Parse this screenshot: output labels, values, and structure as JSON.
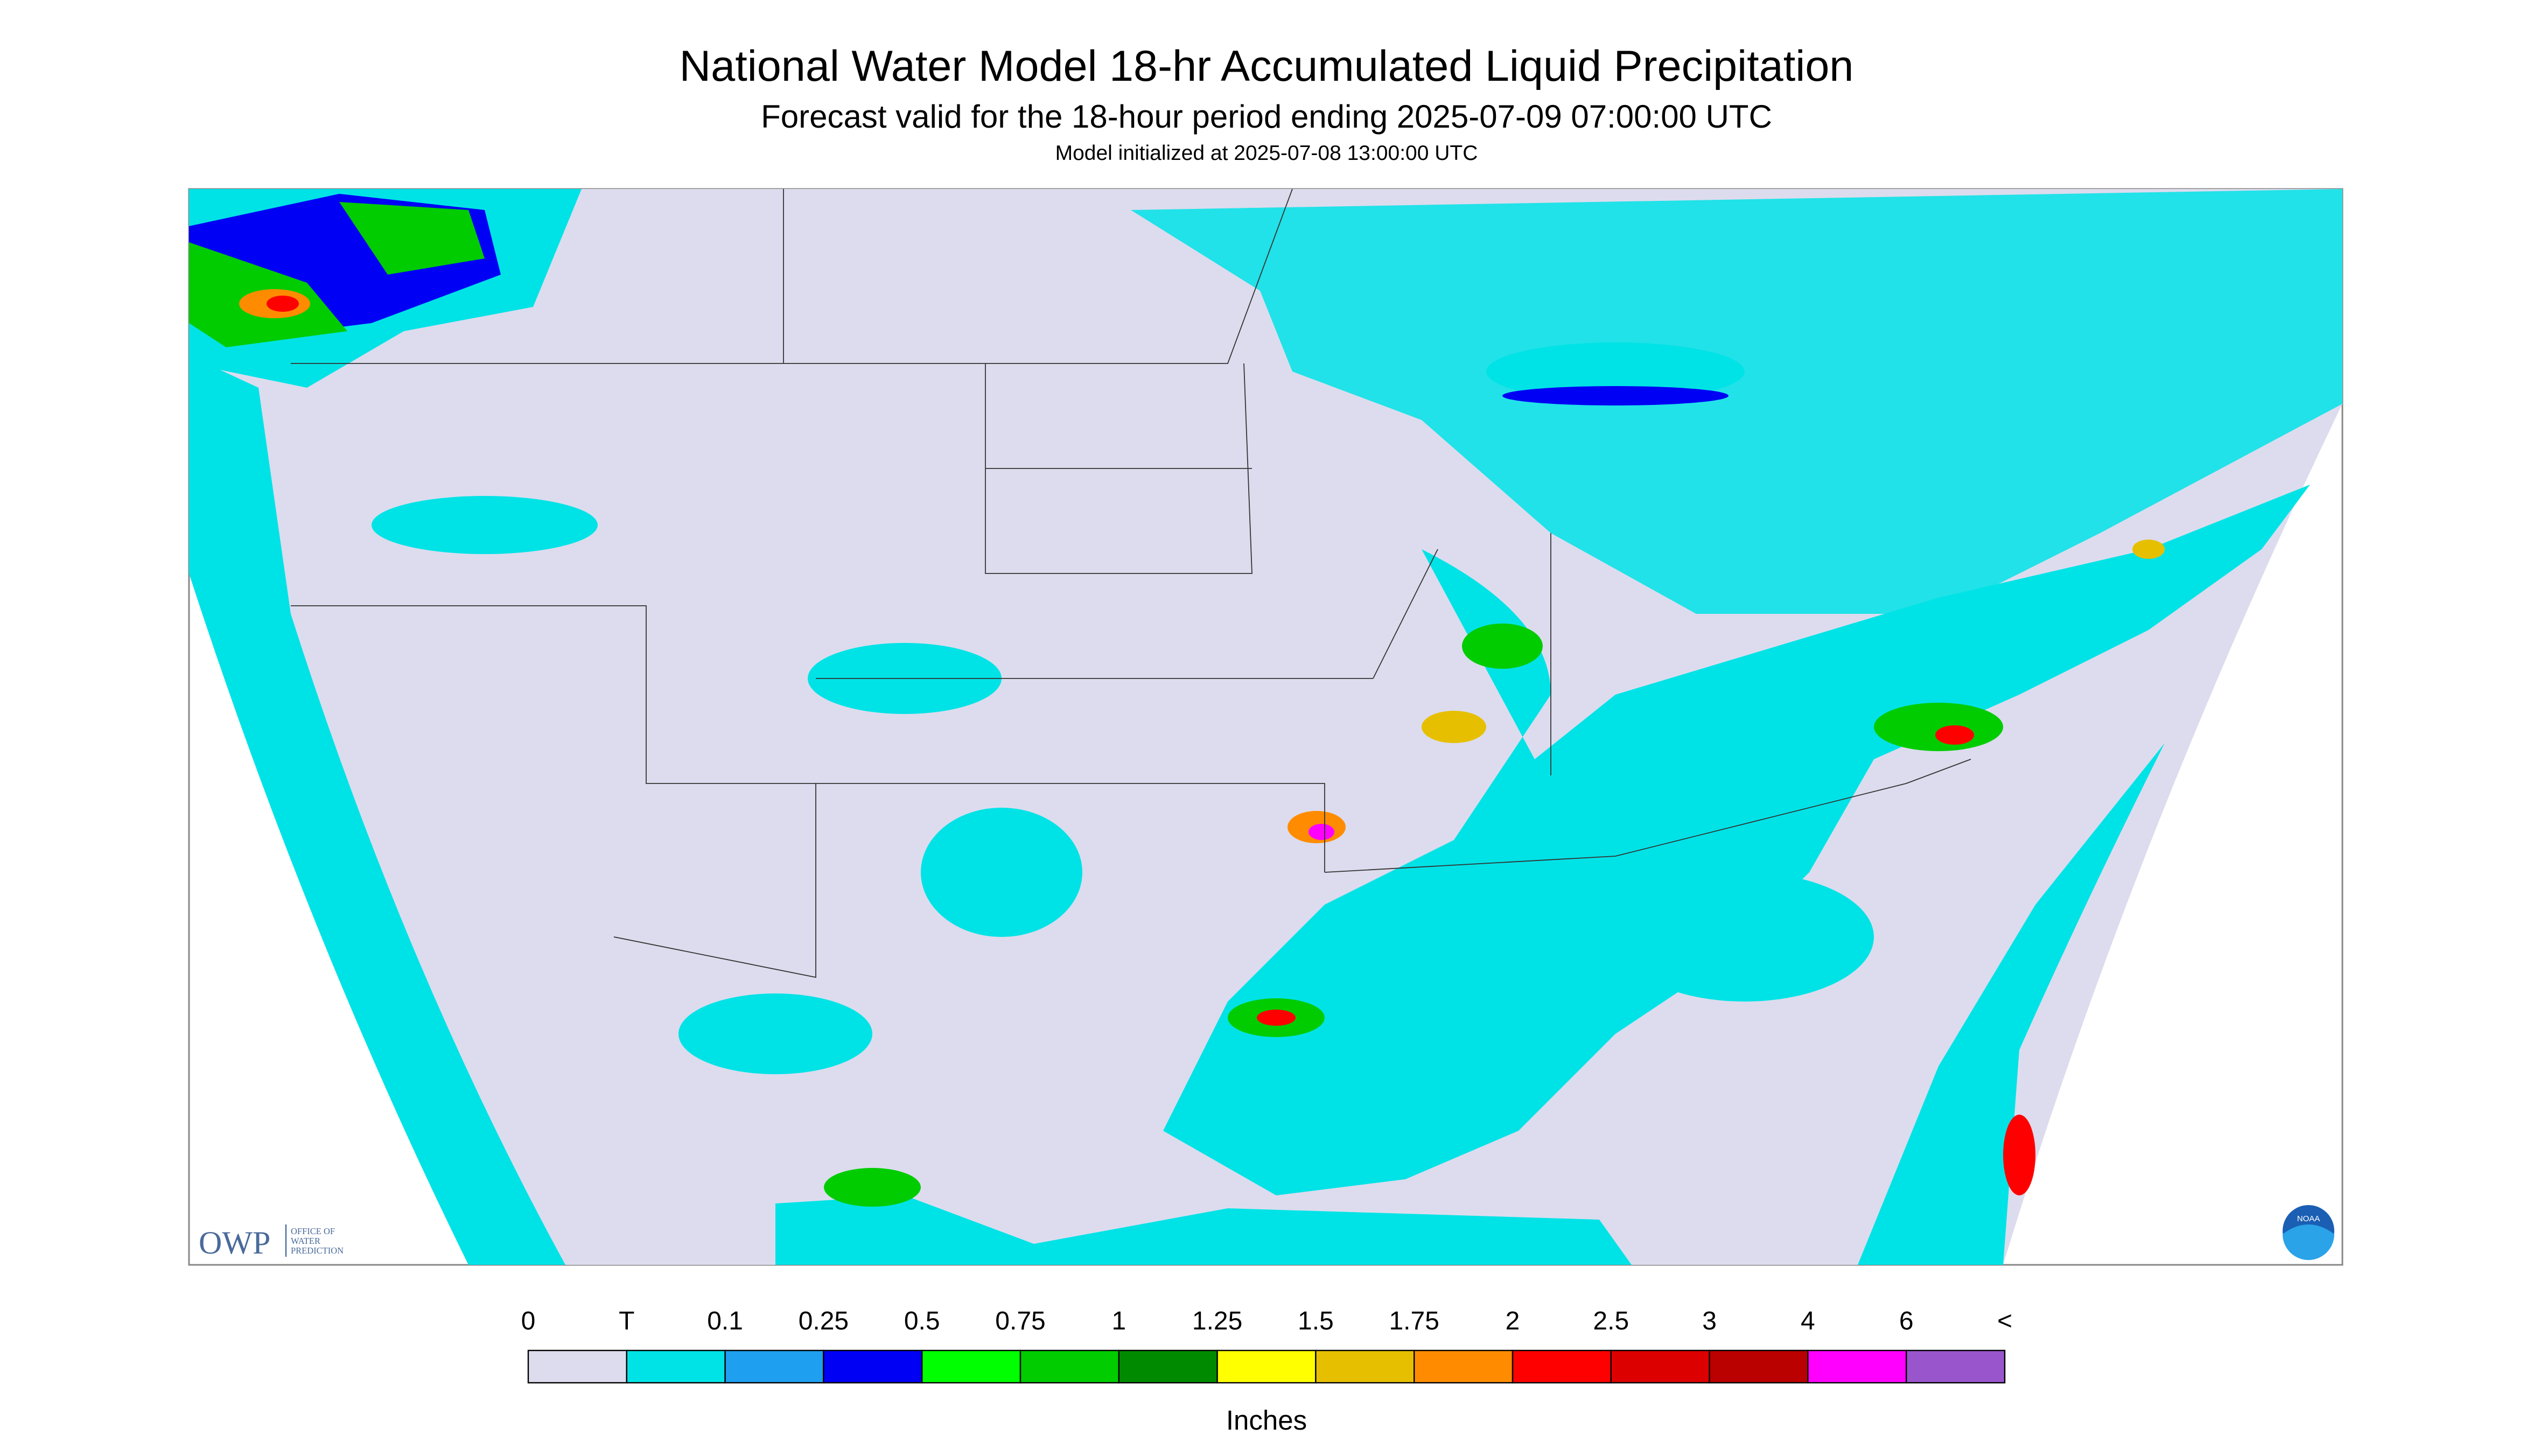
{
  "header": {
    "title": "National Water Model 18-hr Accumulated Liquid Precipitation",
    "subtitle": "Forecast valid for the 18-hour period ending 2025-07-09 07:00:00 UTC",
    "init": "Model initialized at 2025-07-08 13:00:00 UTC"
  },
  "logo": {
    "owp": "OWP",
    "owp_sub": [
      "OFFICE OF",
      "WATER",
      "PREDICTION"
    ],
    "noaa": "NOAA"
  },
  "colorbar": {
    "labels": [
      "0",
      "T",
      "0.1",
      "0.25",
      "0.5",
      "0.75",
      "1",
      "1.25",
      "1.5",
      "1.75",
      "2",
      "2.5",
      "3",
      "4",
      "6",
      "<"
    ],
    "colors": [
      "#dcdcee",
      "#00e3e6",
      "#1e9ff0",
      "#0000f5",
      "#00ff00",
      "#00cc00",
      "#008a00",
      "#ffff00",
      "#e6c000",
      "#ff8c00",
      "#ff0000",
      "#dd0000",
      "#bb0000",
      "#ff00ff",
      "#9955cc"
    ],
    "units": "Inches"
  }
}
